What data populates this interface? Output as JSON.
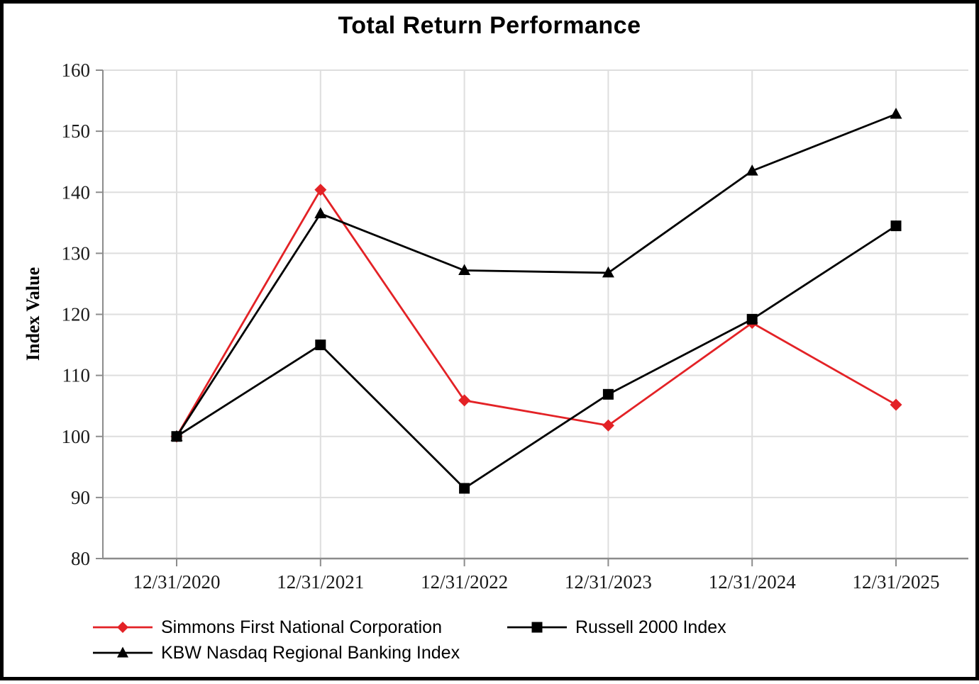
{
  "chart_data": {
    "type": "line",
    "title": "Total Return Performance",
    "xlabel": "",
    "ylabel": "Index Value",
    "ylim": [
      80,
      160
    ],
    "yticks": [
      80,
      90,
      100,
      110,
      120,
      130,
      140,
      150,
      160
    ],
    "grid": true,
    "legend_position": "bottom",
    "categories": [
      "12/31/2020",
      "12/31/2021",
      "12/31/2022",
      "12/31/2023",
      "12/31/2024",
      "12/31/2025"
    ],
    "series": [
      {
        "name": "Simmons First National Corporation",
        "marker": "diamond",
        "color": "#e32226",
        "values": [
          100,
          140.4,
          105.9,
          101.8,
          118.6,
          105.2
        ]
      },
      {
        "name": "Russell 2000 Index",
        "marker": "square",
        "color": "#000000",
        "values": [
          100,
          115.0,
          91.5,
          106.9,
          119.2,
          134.5
        ]
      },
      {
        "name": "KBW Nasdaq Regional Banking Index",
        "marker": "triangle",
        "color": "#000000",
        "values": [
          100,
          136.5,
          127.2,
          126.8,
          143.5,
          152.8
        ]
      }
    ],
    "style": {
      "grid_color": "#dedede",
      "axis_color": "#8c8c8c",
      "tick_label_color": "#1a1a1a"
    }
  }
}
